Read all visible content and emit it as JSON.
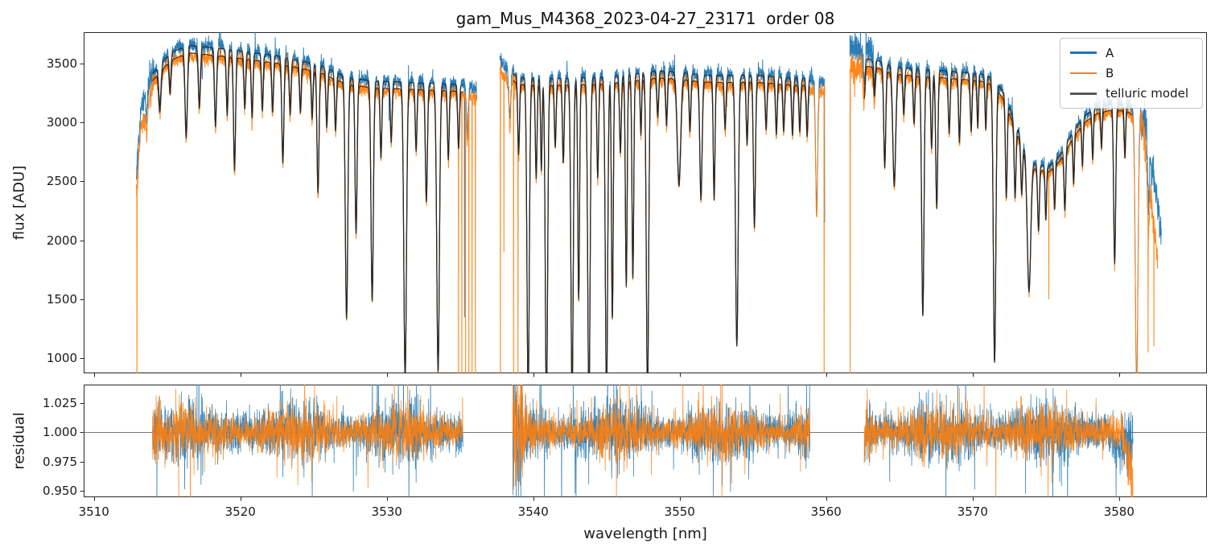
{
  "chart_data": {
    "type": "line",
    "title": "gam_Mus_M4368_2023-04-27_23171  order 08",
    "xlabel": "wavelength [nm]",
    "xlim": [
      3509.3,
      3586.0
    ],
    "xticks": {
      "values": [
        3510,
        3520,
        3530,
        3540,
        3550,
        3560,
        3570,
        3580
      ],
      "labels": [
        "3510",
        "3520",
        "3530",
        "3540",
        "3550",
        "3560",
        "3570",
        "3580"
      ]
    },
    "panels": {
      "flux": {
        "ylabel": "flux [ADU]",
        "ylim": [
          870,
          3766
        ],
        "yticks": {
          "values": [
            3500,
            3000,
            2500,
            2000,
            1500,
            1000
          ],
          "labels": [
            "3500",
            "3000",
            "2500",
            "2000",
            "1500",
            "1000"
          ]
        }
      },
      "residual": {
        "ylabel": "residual",
        "ylim": [
          0.9445,
          1.0405
        ],
        "hline": 1.0,
        "yticks": {
          "values": [
            1.025,
            1.0,
            0.975,
            0.95
          ],
          "labels": [
            "1.025",
            "1.000",
            "0.975",
            "0.950"
          ]
        }
      }
    },
    "legend": [
      {
        "label": "A",
        "color": "#1f77b4"
      },
      {
        "label": "B",
        "color": "#ff7f0e"
      },
      {
        "label": "telluric model",
        "color": "#595959"
      }
    ],
    "model_color": "#2b2622",
    "axis_color": "#262626",
    "hline_color": "#777777",
    "spectrum": {
      "step": 0.012,
      "segments": [
        {
          "xrange": [
            3512.9,
            3536.15
          ],
          "continuum": [
            [
              3512.9,
              2500
            ],
            [
              3513.2,
              3080
            ],
            [
              3513.8,
              3350
            ],
            [
              3514.6,
              3470
            ],
            [
              3515.3,
              3560
            ],
            [
              3516.5,
              3620
            ],
            [
              3518.0,
              3600
            ],
            [
              3519.5,
              3580
            ],
            [
              3521.0,
              3555
            ],
            [
              3522.5,
              3530
            ],
            [
              3524.0,
              3490
            ],
            [
              3525.5,
              3450
            ],
            [
              3526.5,
              3390
            ],
            [
              3527.5,
              3345
            ],
            [
              3529.0,
              3320
            ],
            [
              3531.0,
              3310
            ],
            [
              3533.0,
              3300
            ],
            [
              3535.0,
              3290
            ],
            [
              3536.2,
              3250
            ]
          ]
        },
        {
          "xrange": [
            3537.72,
            3559.9
          ],
          "continuum": [
            [
              3537.7,
              3500
            ],
            [
              3538.1,
              3420
            ],
            [
              3539.0,
              3350
            ],
            [
              3541.0,
              3340
            ],
            [
              3543.0,
              3345
            ],
            [
              3545.0,
              3355
            ],
            [
              3547.0,
              3380
            ],
            [
              3548.5,
              3405
            ],
            [
              3550.0,
              3395
            ],
            [
              3551.5,
              3370
            ],
            [
              3553.0,
              3365
            ],
            [
              3555.0,
              3370
            ],
            [
              3557.0,
              3350
            ],
            [
              3558.5,
              3340
            ],
            [
              3559.9,
              3300
            ]
          ]
        },
        {
          "xrange": [
            3561.62,
            3582.9
          ],
          "continuum": [
            [
              3561.6,
              3520
            ],
            [
              3562.5,
              3510
            ],
            [
              3563.5,
              3490
            ],
            [
              3564.5,
              3445
            ],
            [
              3566.0,
              3420
            ],
            [
              3567.5,
              3410
            ],
            [
              3569.0,
              3395
            ],
            [
              3570.5,
              3380
            ],
            [
              3571.5,
              3340
            ],
            [
              3572.2,
              3200
            ],
            [
              3572.8,
              3000
            ],
            [
              3573.5,
              2780
            ],
            [
              3574.3,
              2620
            ],
            [
              3575.2,
              2600
            ],
            [
              3576.0,
              2700
            ],
            [
              3576.8,
              2880
            ],
            [
              3577.6,
              3020
            ],
            [
              3578.5,
              3100
            ],
            [
              3579.5,
              3130
            ],
            [
              3580.5,
              3120
            ],
            [
              3581.3,
              3060
            ],
            [
              3581.9,
              3000
            ],
            [
              3582.4,
              2850
            ],
            [
              3582.9,
              2600
            ]
          ]
        }
      ],
      "lines": [
        [
          3513.6,
          0.08,
          0.05
        ],
        [
          3514.5,
          0.1,
          0.08
        ],
        [
          3515.2,
          0.08,
          0.06
        ],
        [
          3516.3,
          0.2,
          0.08
        ],
        [
          3517.2,
          0.13,
          0.07
        ],
        [
          3518.3,
          0.17,
          0.07
        ],
        [
          3519.1,
          0.14,
          0.06
        ],
        [
          3519.6,
          0.27,
          0.07
        ],
        [
          3520.3,
          0.12,
          0.06
        ],
        [
          3520.8,
          0.14,
          0.06
        ],
        [
          3521.5,
          0.12,
          0.06
        ],
        [
          3522.2,
          0.12,
          0.06
        ],
        [
          3522.9,
          0.24,
          0.07
        ],
        [
          3523.4,
          0.12,
          0.06
        ],
        [
          3524.1,
          0.11,
          0.06
        ],
        [
          3524.9,
          0.12,
          0.06
        ],
        [
          3525.3,
          0.3,
          0.07
        ],
        [
          3525.9,
          0.13,
          0.06
        ],
        [
          3526.5,
          0.13,
          0.06
        ],
        [
          3527.25,
          0.6,
          0.085
        ],
        [
          3527.9,
          0.38,
          0.07
        ],
        [
          3529.0,
          0.55,
          0.08
        ],
        [
          3529.6,
          0.18,
          0.06
        ],
        [
          3530.3,
          0.14,
          0.06
        ],
        [
          3531.25,
          0.75,
          0.09
        ],
        [
          3532.0,
          0.16,
          0.06
        ],
        [
          3532.7,
          0.29,
          0.07
        ],
        [
          3533.5,
          0.73,
          0.09
        ],
        [
          3534.2,
          0.18,
          0.06
        ],
        [
          3534.9,
          0.15,
          0.06
        ],
        [
          3535.5,
          0.12,
          0.06
        ],
        [
          3538.4,
          0.12,
          0.06
        ],
        [
          3539.0,
          0.18,
          0.06
        ],
        [
          3539.65,
          0.8,
          0.08
        ],
        [
          3540.2,
          0.24,
          0.06
        ],
        [
          3540.55,
          0.22,
          0.05
        ],
        [
          3540.9,
          0.82,
          0.08
        ],
        [
          3541.5,
          0.16,
          0.06
        ],
        [
          3542.05,
          0.2,
          0.06
        ],
        [
          3542.65,
          0.8,
          0.08
        ],
        [
          3543.1,
          0.55,
          0.06
        ],
        [
          3543.8,
          0.83,
          0.08
        ],
        [
          3544.4,
          0.24,
          0.06
        ],
        [
          3545.0,
          0.8,
          0.08
        ],
        [
          3545.4,
          0.6,
          0.06
        ],
        [
          3545.95,
          0.18,
          0.06
        ],
        [
          3546.35,
          0.52,
          0.06
        ],
        [
          3546.8,
          0.5,
          0.06
        ],
        [
          3547.35,
          0.14,
          0.05
        ],
        [
          3547.8,
          0.8,
          0.08
        ],
        [
          3548.5,
          0.1,
          0.06
        ],
        [
          3549.1,
          0.12,
          0.06
        ],
        [
          3549.95,
          0.27,
          0.12
        ],
        [
          3550.7,
          0.13,
          0.06
        ],
        [
          3551.45,
          0.3,
          0.08
        ],
        [
          3552.35,
          0.3,
          0.06
        ],
        [
          3553.1,
          0.12,
          0.06
        ],
        [
          3553.9,
          0.67,
          0.09
        ],
        [
          3554.6,
          0.16,
          0.06
        ],
        [
          3555.1,
          0.37,
          0.07
        ],
        [
          3555.9,
          0.12,
          0.06
        ],
        [
          3556.6,
          0.13,
          0.06
        ],
        [
          3557.1,
          0.12,
          0.06
        ],
        [
          3557.7,
          0.13,
          0.06
        ],
        [
          3558.2,
          0.12,
          0.06
        ],
        [
          3558.7,
          0.13,
          0.06
        ],
        [
          3559.35,
          0.33,
          0.07
        ],
        [
          3562.6,
          0.08,
          0.06
        ],
        [
          3563.3,
          0.07,
          0.06
        ],
        [
          3564.0,
          0.24,
          0.07
        ],
        [
          3564.65,
          0.28,
          0.1
        ],
        [
          3565.3,
          0.1,
          0.06
        ],
        [
          3566.0,
          0.12,
          0.06
        ],
        [
          3566.6,
          0.6,
          0.08
        ],
        [
          3567.2,
          0.18,
          0.06
        ],
        [
          3567.55,
          0.33,
          0.07
        ],
        [
          3568.4,
          0.14,
          0.06
        ],
        [
          3569.1,
          0.16,
          0.06
        ],
        [
          3569.9,
          0.13,
          0.06
        ],
        [
          3570.35,
          0.12,
          0.05
        ],
        [
          3570.9,
          0.12,
          0.05
        ],
        [
          3571.5,
          0.71,
          0.085
        ],
        [
          3572.3,
          0.25,
          0.06
        ],
        [
          3572.9,
          0.2,
          0.06
        ],
        [
          3573.35,
          0.15,
          0.06
        ],
        [
          3573.85,
          0.42,
          0.12
        ],
        [
          3574.5,
          0.2,
          0.06
        ],
        [
          3575.0,
          0.16,
          0.05
        ],
        [
          3575.6,
          0.14,
          0.05
        ],
        [
          3576.3,
          0.18,
          0.06
        ],
        [
          3576.9,
          0.14,
          0.05
        ],
        [
          3577.5,
          0.12,
          0.05
        ],
        [
          3578.2,
          0.12,
          0.05
        ],
        [
          3578.8,
          0.1,
          0.05
        ],
        [
          3579.7,
          0.42,
          0.07
        ],
        [
          3580.4,
          0.13,
          0.05
        ],
        [
          3581.2,
          0.75,
          0.09
        ],
        [
          3582.0,
          0.2,
          0.06
        ]
      ],
      "model_ranges": [
        [
          3514.0,
          3535.2
        ],
        [
          3538.6,
          3558.9
        ],
        [
          3562.6,
          3580.9
        ]
      ],
      "model_offsets": [
        1.01,
        0.992
      ],
      "noise_regions": [
        {
          "range": [
            3512.9,
            3514.1
          ],
          "factor": 2.0
        },
        {
          "range": [
            3561.6,
            3563.4
          ],
          "factor": 1.8
        },
        {
          "range": [
            3581.5,
            3583.0
          ],
          "factor": 3.0
        }
      ],
      "series": {
        "A": {
          "seed": 101,
          "sigma": 0.01,
          "bias": 1.012,
          "end": 3582.9,
          "bias_regions": [
            {
              "range": [
                3561.6,
                3563.3
              ],
              "bias": 1.03
            }
          ],
          "end_fade": {
            "start": 3581.8,
            "slope": 0.22
          },
          "spikes": [
            [
              3535.3,
              1350
            ],
            [
              3559.9,
              2150
            ]
          ]
        },
        "B": {
          "seed": 202,
          "sigma": 0.009,
          "bias": 0.986,
          "end": 3582.65,
          "bias_regions": [
            {
              "range": [
                3512.9,
                3514.0
              ],
              "bias": 0.955
            },
            {
              "range": [
                3561.6,
                3563.3
              ],
              "bias": 0.982
            }
          ],
          "end_fade": {
            "start": 3581.6,
            "slope": 0.3
          },
          "spikes": [
            [
              3512.94,
              250
            ],
            [
              3534.9,
              250
            ],
            [
              3535.12,
              250
            ],
            [
              3535.38,
              250
            ],
            [
              3535.6,
              250
            ],
            [
              3535.82,
              250
            ],
            [
              3536.05,
              250
            ],
            [
              3537.76,
              250
            ],
            [
              3538.0,
              1900
            ],
            [
              3538.66,
              250
            ],
            [
              3538.95,
              250
            ],
            [
              3559.86,
              250
            ],
            [
              3561.64,
              250
            ],
            [
              3575.2,
              1500
            ],
            [
              3581.98,
              1050
            ],
            [
              3582.38,
              1100
            ]
          ]
        }
      }
    },
    "residuals": {
      "step": 0.012,
      "segments": [
        [
          3514.0,
          3535.2
        ],
        [
          3538.6,
          3558.9
        ],
        [
          3562.6,
          3580.95
        ]
      ],
      "spike_prob": 0.018,
      "spike_factor": 3.8,
      "extra_noise": [
        {
          "range": [
            3514.0,
            3514.6
          ],
          "factor": 1.5
        },
        {
          "range": [
            3538.6,
            3539.3
          ],
          "factor": 2.2
        },
        {
          "range": [
            3562.6,
            3563.2
          ],
          "factor": 1.6
        }
      ],
      "series": {
        "A": {
          "seed": 303,
          "sigma": 0.011,
          "bias_regions": [
            {
              "range": [
                3579.6,
                3581.0
              ],
              "bias": -0.012
            }
          ],
          "tail": null
        },
        "B": {
          "seed": 404,
          "sigma": 0.0095,
          "bias_regions": [],
          "tail": {
            "start": 3580.2,
            "slope": -0.045
          }
        }
      }
    }
  }
}
